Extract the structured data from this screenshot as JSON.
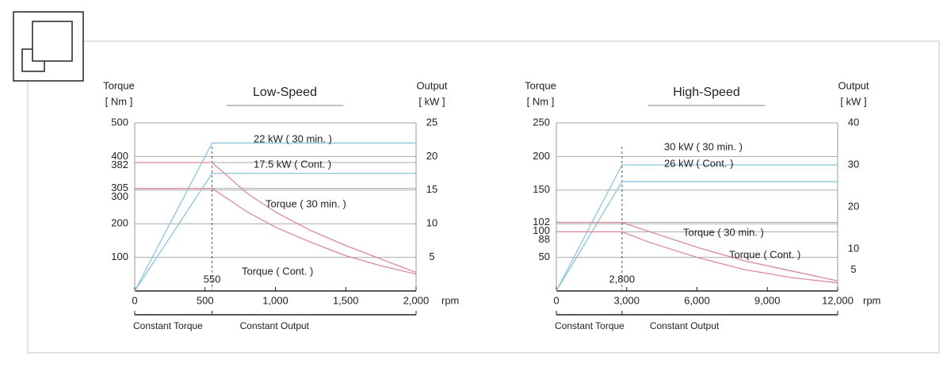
{
  "chart_data": [
    {
      "type": "line",
      "title": "Low-Speed",
      "y_label": [
        "Torque",
        "[ Nm ]"
      ],
      "y2_label": [
        "Output",
        "[ kW ]"
      ],
      "x_unit": "rpm",
      "xlim": [
        0,
        2000
      ],
      "xticks": [
        0,
        500,
        {
          "value": 1000,
          "label": "1,000"
        },
        {
          "value": 1500,
          "label": "1,500"
        },
        {
          "value": 2000,
          "label": "2,000"
        }
      ],
      "ylim": [
        0,
        500
      ],
      "yticks": [
        100,
        200,
        300,
        305,
        382,
        400,
        500
      ],
      "y2lim": [
        0,
        25
      ],
      "y2ticks": [
        5,
        10,
        15,
        20,
        25
      ],
      "base_speed": 550,
      "regions": [
        "Constant Torque",
        "Constant Output"
      ],
      "series": [
        {
          "name": "22 kW ( 30 min. )",
          "color": "#8ec5dd",
          "axis": "y2",
          "x": [
            0,
            550,
            2000
          ],
          "values": [
            0,
            22,
            22
          ]
        },
        {
          "name": "17.5 kW ( Cont. )",
          "color": "#8ec5dd",
          "axis": "y2",
          "x": [
            0,
            550,
            2000
          ],
          "values": [
            0,
            17.5,
            17.5
          ]
        },
        {
          "name": "Torque ( 30 min. )",
          "color": "#d98a9a",
          "axis": "y",
          "x": [
            0,
            550,
            800,
            1000,
            1250,
            1500,
            1750,
            2000
          ],
          "values": [
            382,
            382,
            290,
            235,
            180,
            135,
            95,
            55
          ]
        },
        {
          "name": "Torque ( Cont. )",
          "color": "#d98a9a",
          "axis": "y",
          "x": [
            0,
            550,
            800,
            1000,
            1250,
            1500,
            1750,
            2000
          ],
          "values": [
            305,
            305,
            235,
            190,
            145,
            105,
            75,
            50
          ]
        }
      ]
    },
    {
      "type": "line",
      "title": "High-Speed",
      "y_label": [
        "Torque",
        "[ Nm ]"
      ],
      "y2_label": [
        "Output",
        "[ kW ]"
      ],
      "x_unit": "rpm",
      "xlim": [
        0,
        12000
      ],
      "xticks": [
        0,
        {
          "value": 3000,
          "label": "3,000"
        },
        {
          "value": 6000,
          "label": "6,000"
        },
        {
          "value": 9000,
          "label": "9,000"
        },
        {
          "value": 12000,
          "label": "12,000"
        }
      ],
      "ylim": [
        0,
        250
      ],
      "yticks": [
        50,
        88,
        100,
        102,
        150,
        200,
        250
      ],
      "y2lim": [
        0,
        40
      ],
      "y2ticks": [
        5,
        10,
        20,
        30,
        40
      ],
      "base_speed": {
        "value": 2800,
        "label": "2,800"
      },
      "regions": [
        "Constant Torque",
        "Constant Output"
      ],
      "series": [
        {
          "name": "30 kW ( 30 min. )",
          "color": "#8ec5dd",
          "axis": "y2",
          "x": [
            0,
            2800,
            12000
          ],
          "values": [
            0,
            30,
            30
          ]
        },
        {
          "name": "26 kW ( Cont. )",
          "color": "#8ec5dd",
          "axis": "y2",
          "x": [
            0,
            2800,
            12000
          ],
          "values": [
            0,
            26,
            26
          ]
        },
        {
          "name": "Torque ( 30 min. )",
          "color": "#d98a9a",
          "axis": "y",
          "x": [
            0,
            2800,
            4000,
            6000,
            8000,
            10000,
            12000
          ],
          "values": [
            102,
            102,
            88,
            65,
            45,
            30,
            15
          ]
        },
        {
          "name": "Torque ( Cont. )",
          "color": "#d98a9a",
          "axis": "y",
          "x": [
            0,
            2800,
            4000,
            6000,
            8000,
            10000,
            12000
          ],
          "values": [
            88,
            88,
            72,
            50,
            32,
            20,
            12
          ]
        }
      ]
    }
  ]
}
